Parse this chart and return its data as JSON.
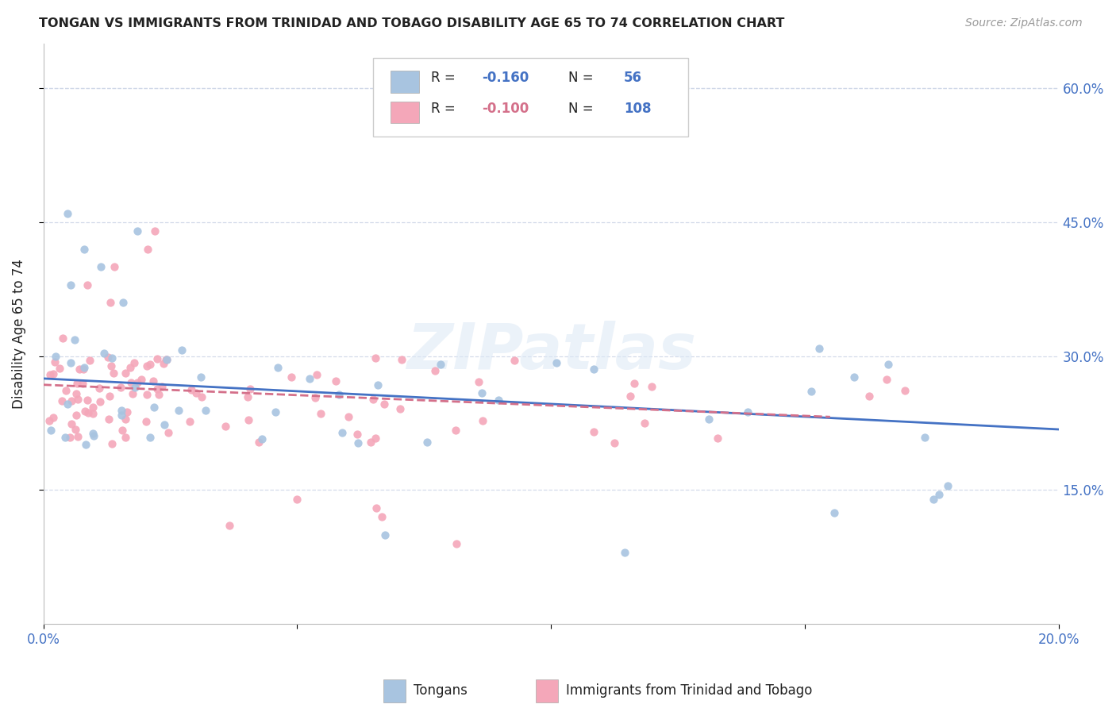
{
  "title": "TONGAN VS IMMIGRANTS FROM TRINIDAD AND TOBAGO DISABILITY AGE 65 TO 74 CORRELATION CHART",
  "source": "Source: ZipAtlas.com",
  "ylabel": "Disability Age 65 to 74",
  "xlim": [
    0.0,
    0.2
  ],
  "ylim": [
    0.0,
    0.65
  ],
  "tongan_R": -0.16,
  "tongan_N": 56,
  "tnt_R": -0.1,
  "tnt_N": 108,
  "tongan_color": "#a8c4e0",
  "tnt_color": "#f4a7b9",
  "trend_tongan_color": "#4472c4",
  "trend_tnt_color": "#d4708a",
  "background_color": "#ffffff",
  "grid_color": "#d0d8e8",
  "watermark": "ZIPatlas",
  "legend_label_tongan": "Tongans",
  "legend_label_tnt": "Immigrants from Trinidad and Tobago",
  "r_value_color": "#4472c4",
  "tnt_r_value_color": "#d4708a",
  "text_color": "#222222",
  "axis_label_color": "#4472c4"
}
